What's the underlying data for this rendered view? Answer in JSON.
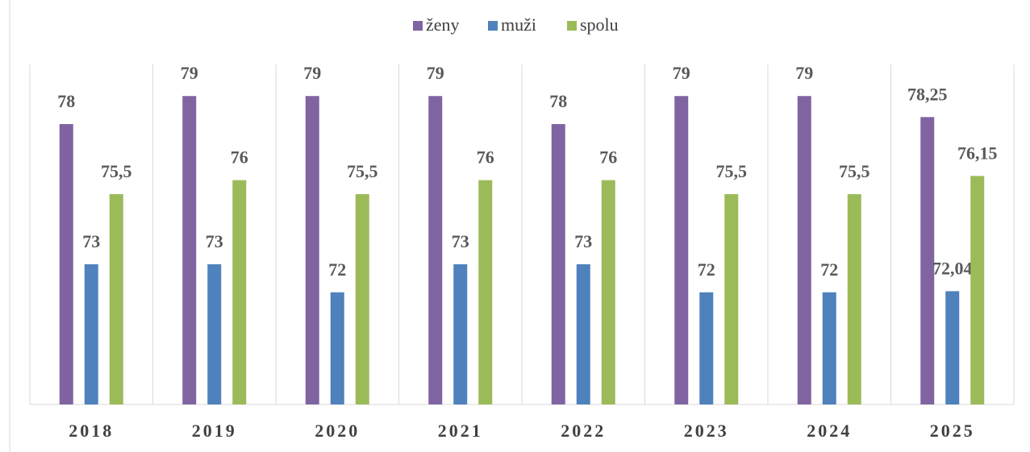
{
  "chart_data": {
    "type": "bar",
    "categories": [
      "2018",
      "2019",
      "2020",
      "2021",
      "2022",
      "2023",
      "2024",
      "2025"
    ],
    "series": [
      {
        "name": "ženy",
        "color": "#8064a2",
        "values": [
          78,
          79,
          79,
          79,
          78,
          79,
          79,
          78.25
        ],
        "value_labels": [
          "78",
          "79",
          "79",
          "79",
          "78",
          "79",
          "79",
          "78,25"
        ]
      },
      {
        "name": "muži",
        "color": "#4f81bd",
        "values": [
          73,
          73,
          72,
          73,
          73,
          72,
          72,
          72.04
        ],
        "value_labels": [
          "73",
          "73",
          "72",
          "73",
          "73",
          "72",
          "72",
          "72,04"
        ]
      },
      {
        "name": "spolu",
        "color": "#9bbb59",
        "values": [
          75.5,
          76,
          75.5,
          76,
          76,
          75.5,
          75.5,
          76.15
        ],
        "value_labels": [
          "75,5",
          "76",
          "75,5",
          "76",
          "76",
          "75,5",
          "75,5",
          "76,15"
        ]
      }
    ],
    "ylim": [
      68,
      80
    ],
    "legend": "top"
  }
}
